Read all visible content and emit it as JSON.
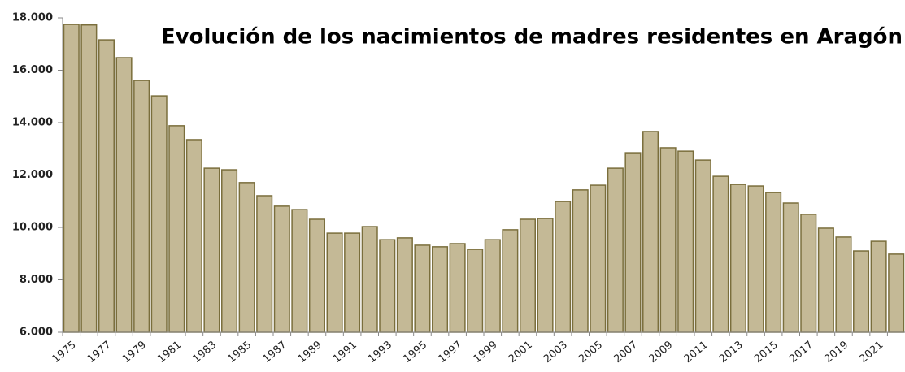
{
  "chart_data": {
    "type": "bar",
    "title": "Evolución de los nacimientos de madres residentes en Aragón",
    "categories": [
      "1975",
      null,
      "1977",
      null,
      "1979",
      null,
      "1981",
      null,
      "1983",
      null,
      "1985",
      null,
      "1987",
      null,
      "1989",
      null,
      "1991",
      null,
      "1993",
      null,
      "1995",
      null,
      "1997",
      null,
      "1999",
      null,
      "2001",
      null,
      "2003",
      null,
      "2005",
      null,
      "2007",
      null,
      "2009",
      null,
      "2011",
      null,
      "2013",
      null,
      "2015",
      null,
      "2017",
      null,
      "2019",
      null,
      "2021",
      null
    ],
    "values": [
      17750,
      17730,
      17160,
      16480,
      15610,
      15020,
      13880,
      13350,
      12260,
      12200,
      11710,
      11210,
      10810,
      10680,
      10310,
      9780,
      9780,
      10030,
      9530,
      9600,
      9320,
      9260,
      9380,
      9160,
      9530,
      9910,
      10310,
      10340,
      10990,
      11430,
      11610,
      12260,
      12850,
      13660,
      13040,
      12910,
      12570,
      11950,
      11640,
      11580,
      11330,
      10930,
      10500,
      9970,
      9630,
      9100,
      9470,
      8980
    ],
    "color": "#c4b996",
    "ylim": [
      6000,
      18000
    ],
    "yticks": [
      {
        "value": 6000,
        "label": "6.000"
      },
      {
        "value": 8000,
        "label": "8.000"
      },
      {
        "value": 10000,
        "label": "10.000"
      },
      {
        "value": 12000,
        "label": "12.000"
      },
      {
        "value": 14000,
        "label": "14.000"
      },
      {
        "value": 16000,
        "label": "16.000"
      },
      {
        "value": 18000,
        "label": "18.000"
      }
    ],
    "grid": false
  }
}
